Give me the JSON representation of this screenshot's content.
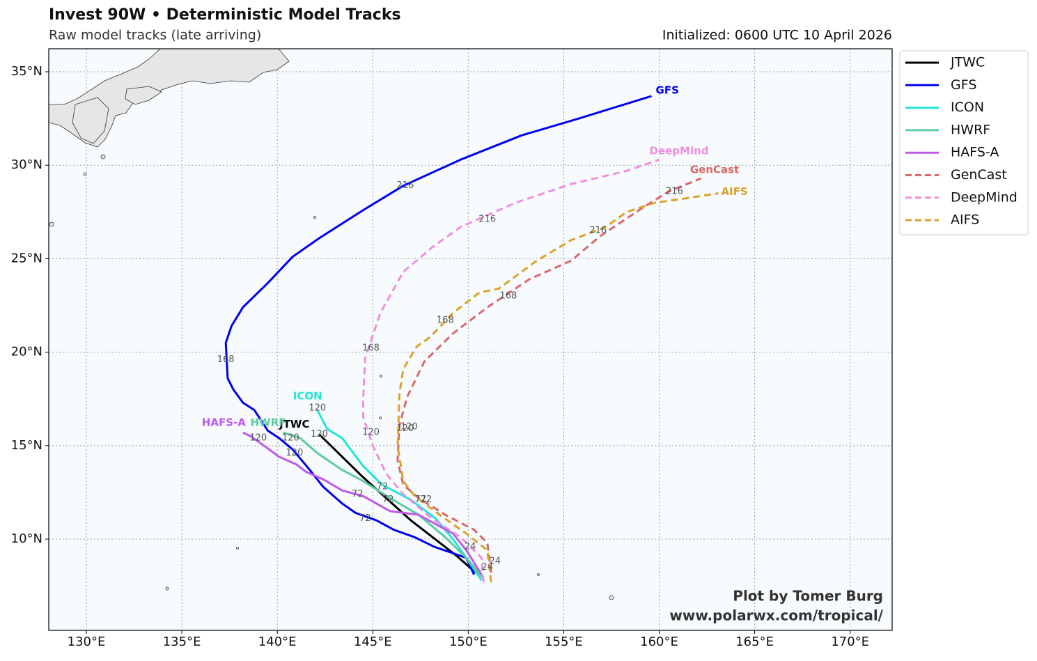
{
  "chart_data": {
    "type": "line",
    "title": "Invest 90W • Deterministic Model Tracks",
    "subtitle": "Raw model tracks (late arriving)",
    "initialized": "Initialized: 0600 UTC 10 April 2026",
    "credit": [
      "Plot by Tomer Burg",
      "www.polarwx.com/tropical/"
    ],
    "xlim": [
      128.03,
      172.2
    ],
    "ylim": [
      5.12,
      36.23
    ],
    "xticks": [
      {
        "value": 130,
        "label": "130°E"
      },
      {
        "value": 135,
        "label": "135°E"
      },
      {
        "value": 140,
        "label": "140°E"
      },
      {
        "value": 145,
        "label": "145°E"
      },
      {
        "value": 150,
        "label": "150°E"
      },
      {
        "value": 155,
        "label": "155°E"
      },
      {
        "value": 160,
        "label": "160°E"
      },
      {
        "value": 165,
        "label": "165°E"
      },
      {
        "value": 170,
        "label": "170°E"
      }
    ],
    "yticks": [
      {
        "value": 10,
        "label": "10°N"
      },
      {
        "value": 15,
        "label": "15°N"
      },
      {
        "value": 20,
        "label": "20°N"
      },
      {
        "value": 25,
        "label": "25°N"
      },
      {
        "value": 30,
        "label": "30°N"
      },
      {
        "value": 35,
        "label": "35°N"
      }
    ],
    "grid": true,
    "legend": "outside-upper-right",
    "series": [
      {
        "name": "JTWC",
        "color": "#000000",
        "dashed": false,
        "lon": [
          150.4,
          149.4,
          147.0,
          144.5,
          142.2
        ],
        "lat": [
          8.2,
          9.1,
          11.0,
          13.3,
          15.6
        ]
      },
      {
        "name": "GFS",
        "color": "#0000ee",
        "dashed": false,
        "lon": [
          150.3,
          149.9,
          148.2,
          147.2,
          146.1,
          145.2,
          144.1,
          143.4,
          142.4,
          141.7,
          140.8,
          140.1,
          139.5,
          138.8,
          138.2,
          137.7,
          137.4,
          137.3,
          137.6,
          138.2,
          139.5,
          140.8,
          142.2,
          144.5,
          146.6,
          149.6,
          152.8,
          155.8,
          159.6
        ],
        "lat": [
          8.1,
          9.0,
          9.6,
          10.1,
          10.5,
          11.0,
          11.4,
          11.9,
          12.8,
          13.7,
          14.8,
          15.4,
          15.8,
          16.9,
          17.3,
          18.0,
          18.6,
          20.5,
          21.4,
          22.4,
          23.7,
          25.1,
          26.1,
          27.6,
          28.9,
          30.3,
          31.6,
          32.5,
          33.7
        ]
      },
      {
        "name": "ICON",
        "color": "#22e5d8",
        "dashed": false,
        "lon": [
          150.7,
          149.9,
          149.2,
          148.3,
          147.0,
          145.5,
          144.5,
          143.4,
          142.6,
          142.1
        ],
        "lat": [
          7.8,
          9.0,
          10.0,
          11.1,
          12.1,
          12.9,
          13.9,
          15.4,
          15.9,
          16.9
        ]
      },
      {
        "name": "HWRF",
        "color": "#5ecba1",
        "dashed": false,
        "lon": [
          150.8,
          149.9,
          148.8,
          147.4,
          145.9,
          144.5,
          143.4,
          142.1,
          141.2,
          140.3
        ],
        "lat": [
          7.9,
          9.0,
          10.1,
          11.3,
          12.2,
          13.1,
          13.7,
          14.6,
          15.4,
          15.7
        ]
      },
      {
        "name": "HAFS-A",
        "color": "#bf5ae8",
        "dashed": false,
        "lon": [
          150.7,
          149.9,
          149.2,
          147.4,
          145.9,
          144.5,
          143.4,
          142.4,
          141.5,
          141.0,
          140.1,
          139.3,
          138.6,
          138.2
        ],
        "lat": [
          8.1,
          9.4,
          10.3,
          11.3,
          11.5,
          12.3,
          12.6,
          13.2,
          13.6,
          14.0,
          14.4,
          15.0,
          15.5,
          15.7
        ]
      },
      {
        "name": "GenCast",
        "color": "#d9686a",
        "dashed": true,
        "lon": [
          151.2,
          151.0,
          150.3,
          148.8,
          147.4,
          146.6,
          146.3,
          146.4,
          146.8,
          147.7,
          149.2,
          151.0,
          153.2,
          155.4,
          156.9,
          159.1,
          160.5,
          162.2
        ],
        "lat": [
          8.2,
          9.8,
          10.5,
          11.3,
          12.2,
          12.9,
          14.2,
          16.1,
          17.6,
          19.5,
          21.0,
          22.4,
          23.9,
          24.9,
          26.2,
          27.7,
          28.6,
          29.3
        ]
      },
      {
        "name": "DeepMind",
        "color": "#ee90dd",
        "dashed": true,
        "lon": [
          150.8,
          150.7,
          149.6,
          148.1,
          146.6,
          145.7,
          145.0,
          144.5,
          144.5,
          144.6,
          145.4,
          146.6,
          148.1,
          149.6,
          152.5,
          155.4,
          158.3,
          160.0
        ],
        "lat": [
          7.7,
          9.0,
          10.1,
          11.1,
          12.4,
          13.5,
          15.0,
          16.5,
          17.6,
          19.7,
          22.1,
          24.3,
          25.6,
          26.7,
          28.0,
          29.0,
          29.7,
          30.3
        ]
      },
      {
        "name": "AIFS",
        "color": "#daa22a",
        "dashed": true,
        "lon": [
          151.2,
          151.0,
          149.9,
          148.5,
          147.2,
          146.6,
          146.3,
          146.4,
          146.6,
          147.3,
          148.0,
          149.2,
          150.6,
          151.6,
          153.6,
          155.4,
          157.2,
          158.3,
          159.8,
          161.2,
          163.1
        ],
        "lat": [
          7.7,
          9.4,
          10.3,
          11.3,
          12.3,
          13.1,
          15.0,
          17.8,
          19.1,
          20.3,
          20.8,
          22.1,
          23.2,
          23.4,
          24.9,
          26.0,
          26.7,
          27.5,
          28.0,
          28.2,
          28.5
        ]
      }
    ],
    "hour_labels": [
      {
        "text": "216",
        "lon": 146.7,
        "lat": 28.9
      },
      {
        "text": "168",
        "lon": 137.3,
        "lat": 19.6
      },
      {
        "text": "72",
        "lon": 144.6,
        "lat": 11.1
      },
      {
        "text": "216",
        "lon": 151.0,
        "lat": 27.1
      },
      {
        "text": "168",
        "lon": 144.9,
        "lat": 20.2
      },
      {
        "text": "120",
        "lon": 144.9,
        "lat": 15.7
      },
      {
        "text": "216",
        "lon": 160.8,
        "lat": 28.6
      },
      {
        "text": "168",
        "lon": 152.1,
        "lat": 23.0
      },
      {
        "text": "120",
        "lon": 146.9,
        "lat": 16.0
      },
      {
        "text": "216",
        "lon": 156.8,
        "lat": 26.5
      },
      {
        "text": "168",
        "lon": 148.8,
        "lat": 21.7
      },
      {
        "text": "120",
        "lon": 146.7,
        "lat": 15.9
      },
      {
        "text": "120",
        "lon": 142.1,
        "lat": 17.0
      },
      {
        "text": "120",
        "lon": 142.2,
        "lat": 15.6
      },
      {
        "text": "120",
        "lon": 140.7,
        "lat": 15.4
      },
      {
        "text": "120",
        "lon": 140.9,
        "lat": 14.6
      },
      {
        "text": "120",
        "lon": 139.0,
        "lat": 15.4
      },
      {
        "text": "72",
        "lon": 144.2,
        "lat": 12.4
      },
      {
        "text": "72",
        "lon": 145.5,
        "lat": 12.8
      },
      {
        "text": "72",
        "lon": 145.8,
        "lat": 12.1
      },
      {
        "text": "72",
        "lon": 147.5,
        "lat": 12.1
      },
      {
        "text": "72",
        "lon": 147.8,
        "lat": 12.1
      },
      {
        "text": "24",
        "lon": 150.1,
        "lat": 9.6
      },
      {
        "text": "24",
        "lon": 151.4,
        "lat": 8.8
      },
      {
        "text": "24",
        "lon": 151.0,
        "lat": 8.5
      }
    ]
  }
}
